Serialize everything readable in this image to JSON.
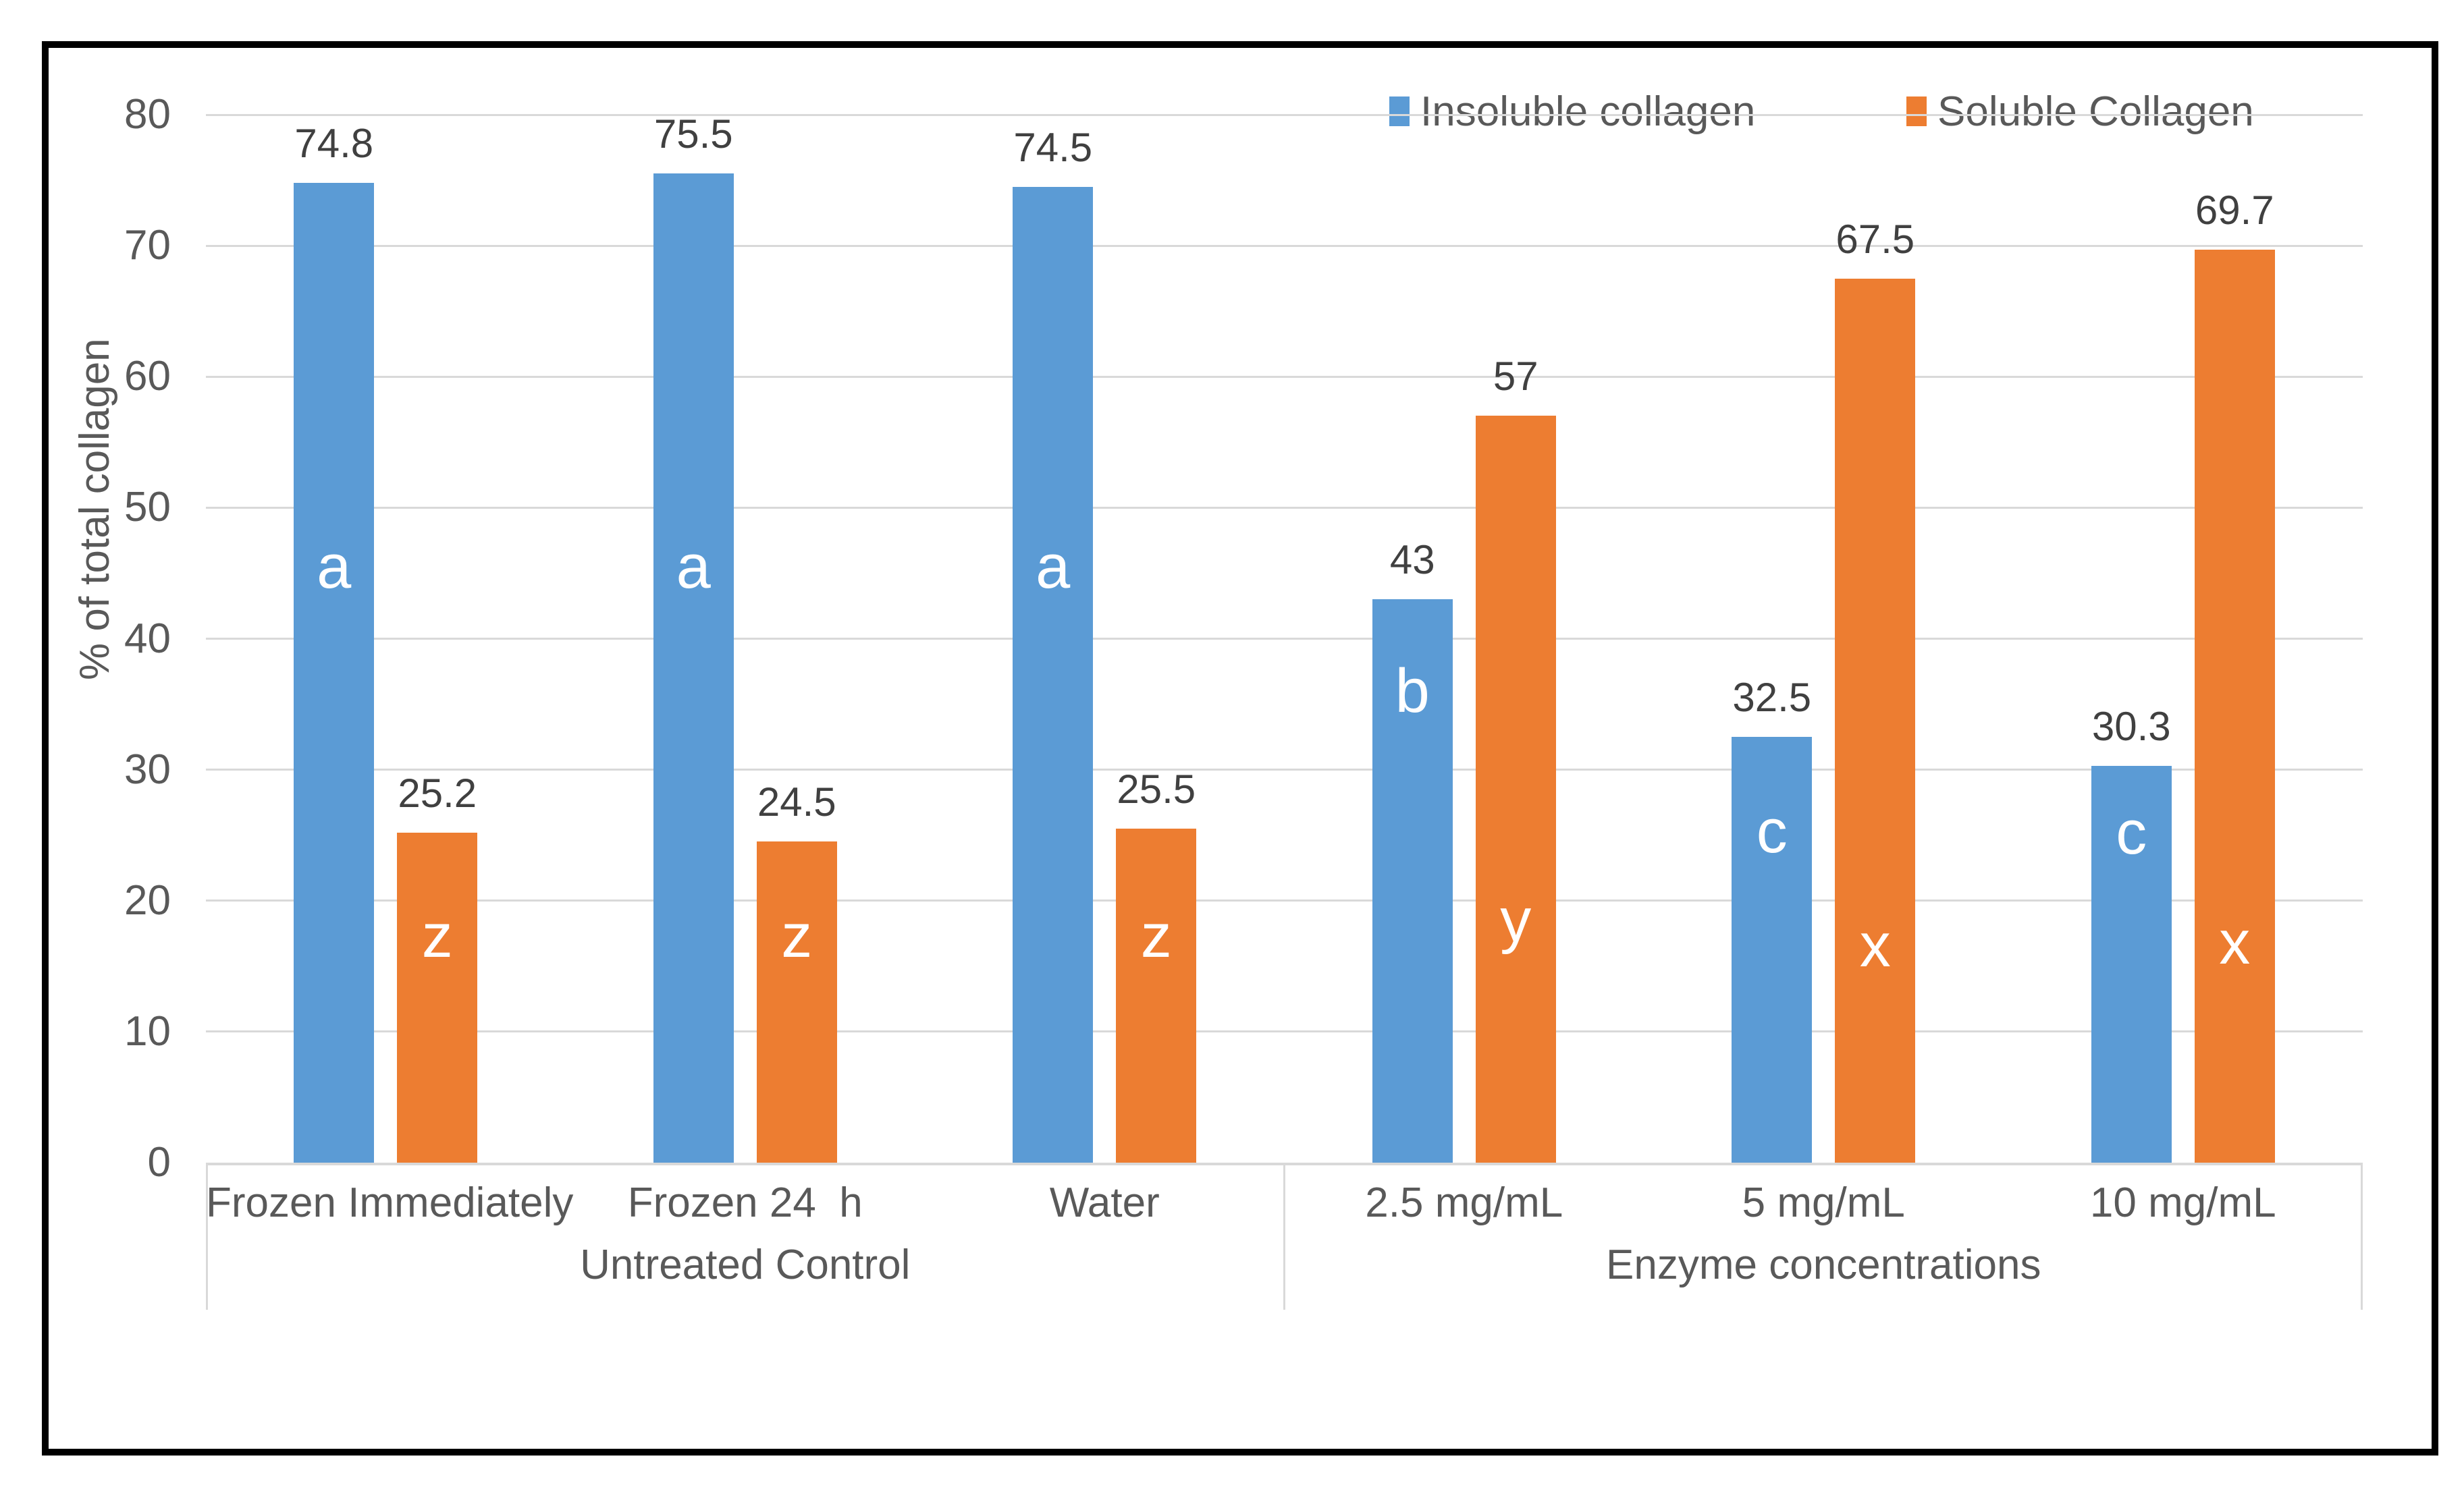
{
  "chart_data": {
    "type": "bar",
    "title": "",
    "xlabel": "",
    "ylabel": "% of total collagen",
    "ylim": [
      0,
      80
    ],
    "yticks": [
      0,
      10,
      20,
      30,
      40,
      50,
      60,
      70,
      80
    ],
    "grid": true,
    "legend_position": "top-right",
    "style": {
      "gridline_color": "#D9D9D9",
      "axis_text_color": "#595959",
      "value_label_color": "#404040",
      "bar_letter_color": "#FFFFFF",
      "frame_border_color": "#000000",
      "background": "#FFFFFF"
    },
    "series": [
      {
        "name": "Insoluble collagen",
        "color": "#5B9BD5"
      },
      {
        "name": "Soluble Collagen",
        "color": "#ED7D31"
      }
    ],
    "groups": [
      {
        "label": "Untreated Control",
        "categories": [
          {
            "label": "Frozen Immediately",
            "bars": [
              {
                "series": "Insoluble collagen",
                "value": 74.8,
                "display": "74.8",
                "letter": "a",
                "letter_at": 45.5
              },
              {
                "series": "Soluble Collagen",
                "value": 25.2,
                "display": "25.2",
                "letter": "z",
                "letter_at": 17.3
              }
            ]
          },
          {
            "label": "Frozen 24  h",
            "bars": [
              {
                "series": "Insoluble collagen",
                "value": 75.5,
                "display": "75.5",
                "letter": "a",
                "letter_at": 45.5
              },
              {
                "series": "Soluble Collagen",
                "value": 24.5,
                "display": "24.5",
                "letter": "z",
                "letter_at": 17.3
              }
            ]
          },
          {
            "label": "Water",
            "bars": [
              {
                "series": "Insoluble collagen",
                "value": 74.5,
                "display": "74.5",
                "letter": "a",
                "letter_at": 45.5
              },
              {
                "series": "Soluble Collagen",
                "value": 25.5,
                "display": "25.5",
                "letter": "z",
                "letter_at": 17.3
              }
            ]
          }
        ]
      },
      {
        "label": "Enzyme concentrations",
        "categories": [
          {
            "label": "2.5 mg/mL",
            "bars": [
              {
                "series": "Insoluble collagen",
                "value": 43,
                "display": "43",
                "letter": "b",
                "letter_at": 36.0
              },
              {
                "series": "Soluble Collagen",
                "value": 57,
                "display": "57",
                "letter": "y",
                "letter_at": 18.5
              }
            ]
          },
          {
            "label": "5 mg/mL",
            "bars": [
              {
                "series": "Insoluble collagen",
                "value": 32.5,
                "display": "32.5",
                "letter": "c",
                "letter_at": 25.3
              },
              {
                "series": "Soluble Collagen",
                "value": 67.5,
                "display": "67.5",
                "letter": "x",
                "letter_at": 16.6
              }
            ]
          },
          {
            "label": "10 mg/mL",
            "bars": [
              {
                "series": "Insoluble collagen",
                "value": 30.3,
                "display": "30.3",
                "letter": "c",
                "letter_at": 25.2
              },
              {
                "series": "Soluble Collagen",
                "value": 69.7,
                "display": "69.7",
                "letter": "x",
                "letter_at": 16.8
              }
            ]
          }
        ]
      }
    ]
  }
}
